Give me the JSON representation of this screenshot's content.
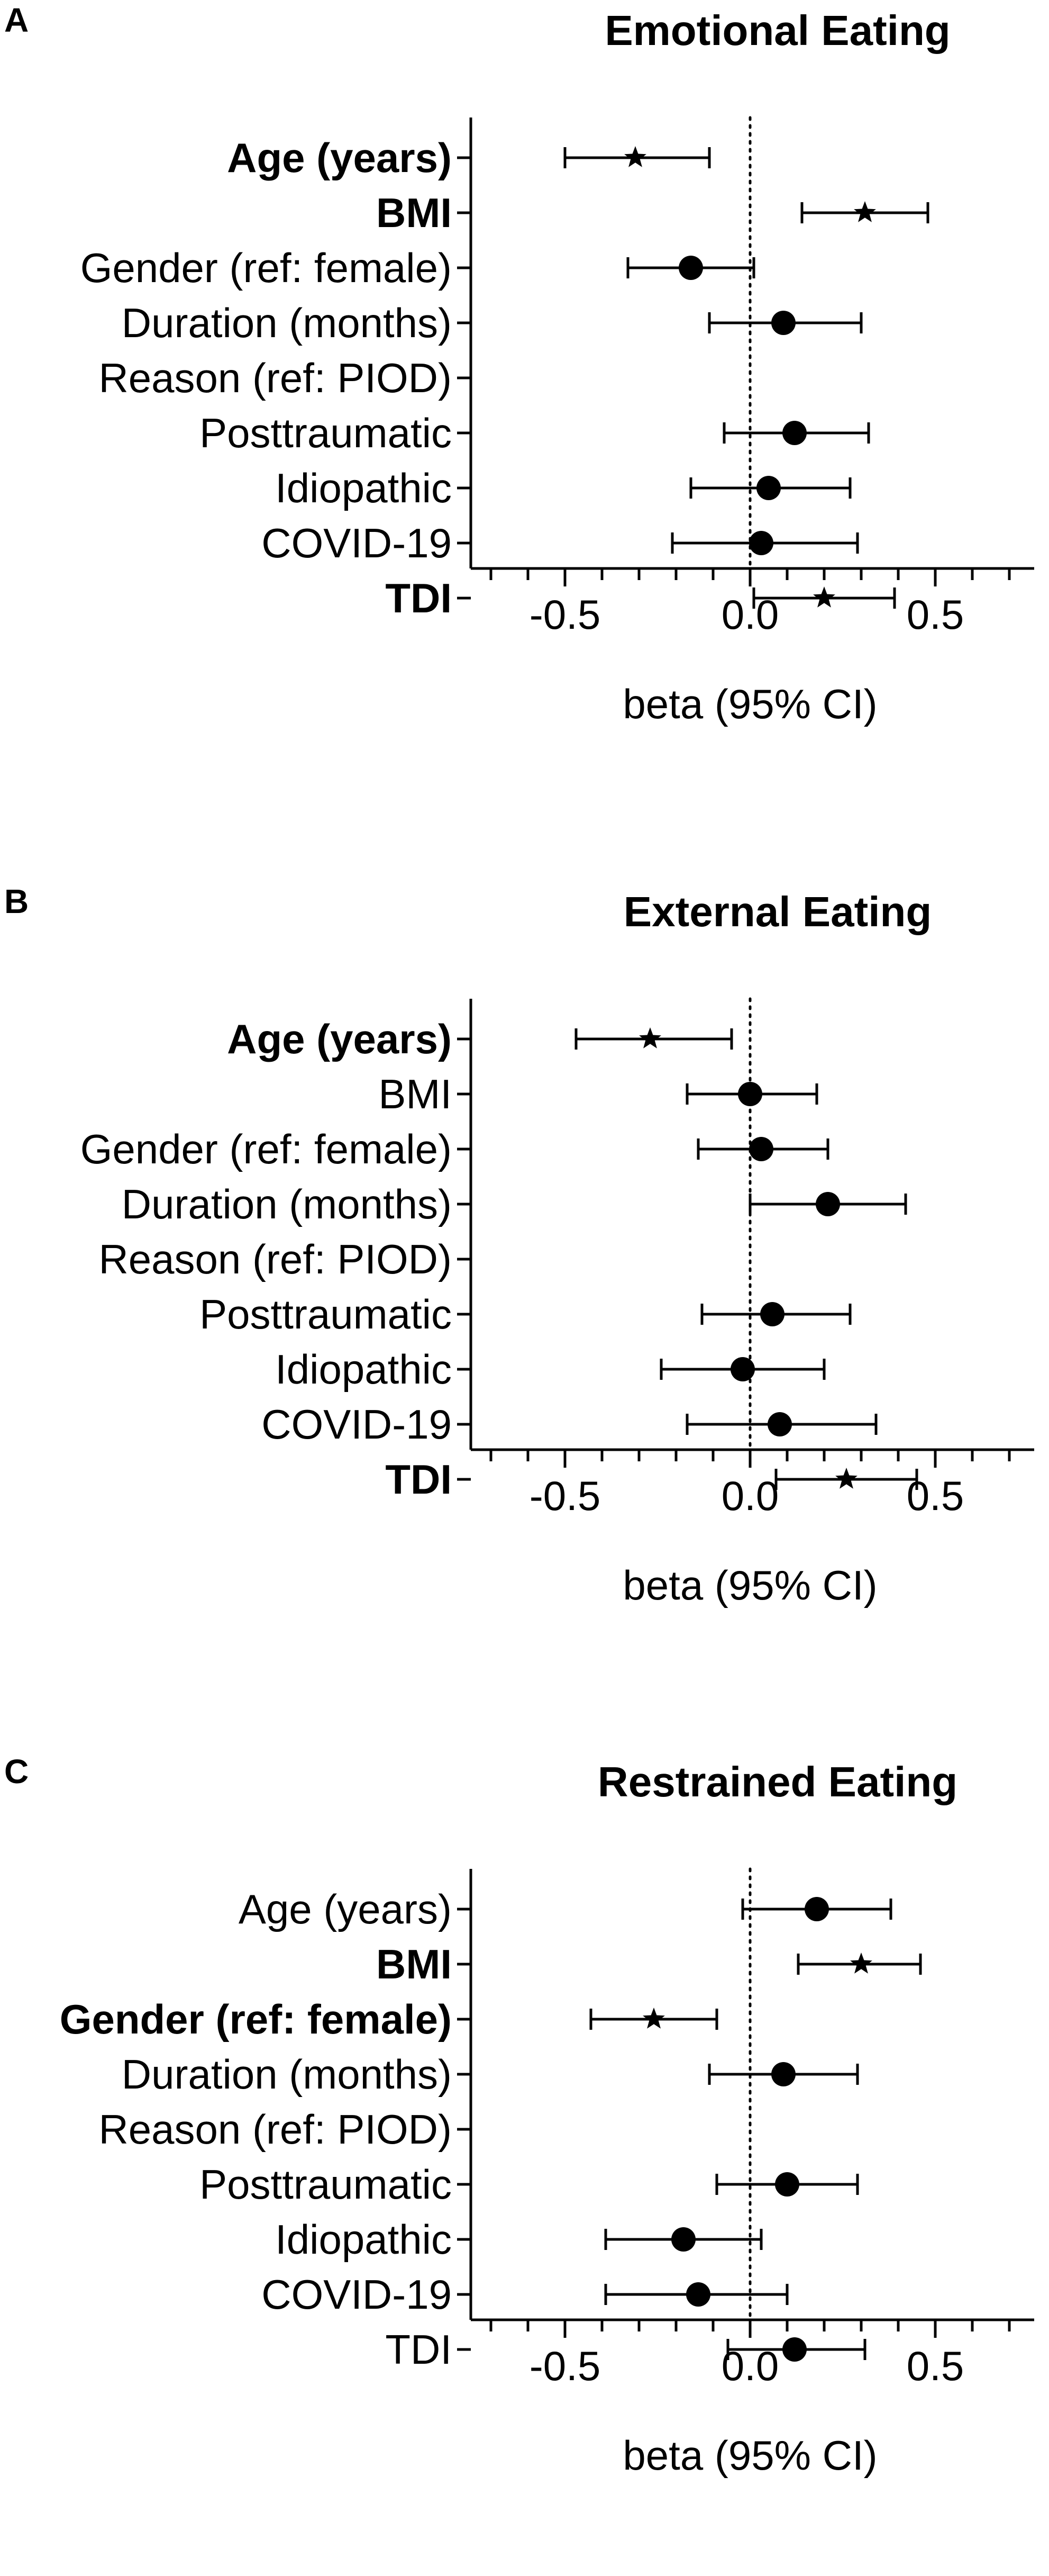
{
  "chart_data": [
    {
      "type": "forest",
      "panel": "A",
      "title": "Emotional Eating",
      "xlabel": "beta (95% CI)",
      "xlim": [
        -0.8,
        0.8
      ],
      "xticks": [
        "-0.5",
        "0.0",
        "0.5"
      ],
      "reference_line": 0,
      "rows": [
        {
          "label": "Age (years)",
          "bold": true,
          "beta": -0.31,
          "lo": -0.5,
          "hi": -0.11,
          "marker": "star"
        },
        {
          "label": "BMI",
          "bold": true,
          "beta": 0.31,
          "lo": 0.14,
          "hi": 0.48,
          "marker": "star"
        },
        {
          "label": "Gender (ref: female)",
          "bold": false,
          "beta": -0.16,
          "lo": -0.33,
          "hi": 0.01,
          "marker": "circle"
        },
        {
          "label": "Duration  (months)",
          "bold": false,
          "beta": 0.09,
          "lo": -0.11,
          "hi": 0.3,
          "marker": "circle"
        },
        {
          "label": "Reason (ref: PIOD)",
          "bold": false,
          "beta": null,
          "lo": null,
          "hi": null,
          "marker": "none"
        },
        {
          "label": "Posttraumatic",
          "bold": false,
          "beta": 0.12,
          "lo": -0.07,
          "hi": 0.32,
          "marker": "circle"
        },
        {
          "label": "Idiopathic",
          "bold": false,
          "beta": 0.05,
          "lo": -0.16,
          "hi": 0.27,
          "marker": "circle"
        },
        {
          "label": "COVID-19",
          "bold": false,
          "beta": 0.03,
          "lo": -0.21,
          "hi": 0.29,
          "marker": "circle"
        },
        {
          "label": "TDI",
          "bold": true,
          "beta": 0.2,
          "lo": 0.01,
          "hi": 0.39,
          "marker": "star"
        }
      ]
    },
    {
      "type": "forest",
      "panel": "B",
      "title": "External Eating",
      "xlabel": "beta (95% CI)",
      "xlim": [
        -0.8,
        0.8
      ],
      "xticks": [
        "-0.5",
        "0.0",
        "0.5"
      ],
      "reference_line": 0,
      "rows": [
        {
          "label": "Age (years)",
          "bold": true,
          "beta": -0.27,
          "lo": -0.47,
          "hi": -0.05,
          "marker": "star"
        },
        {
          "label": "BMI",
          "bold": false,
          "beta": 0.0,
          "lo": -0.17,
          "hi": 0.18,
          "marker": "circle"
        },
        {
          "label": "Gender (ref: female)",
          "bold": false,
          "beta": 0.03,
          "lo": -0.14,
          "hi": 0.21,
          "marker": "circle"
        },
        {
          "label": "Duration (months)",
          "bold": false,
          "beta": 0.21,
          "lo": 0.0,
          "hi": 0.42,
          "marker": "circle"
        },
        {
          "label": "Reason (ref: PIOD)",
          "bold": false,
          "beta": null,
          "lo": null,
          "hi": null,
          "marker": "none"
        },
        {
          "label": "Posttraumatic",
          "bold": false,
          "beta": 0.06,
          "lo": -0.13,
          "hi": 0.27,
          "marker": "circle"
        },
        {
          "label": "Idiopathic",
          "bold": false,
          "beta": -0.02,
          "lo": -0.24,
          "hi": 0.2,
          "marker": "circle"
        },
        {
          "label": "COVID-19",
          "bold": false,
          "beta": 0.08,
          "lo": -0.17,
          "hi": 0.34,
          "marker": "circle"
        },
        {
          "label": "TDI",
          "bold": true,
          "beta": 0.26,
          "lo": 0.07,
          "hi": 0.45,
          "marker": "star"
        }
      ]
    },
    {
      "type": "forest",
      "panel": "C",
      "title": "Restrained Eating",
      "xlabel": "beta (95% CI)",
      "xlim": [
        -0.8,
        0.8
      ],
      "xticks": [
        "-0.5",
        "0.0",
        "0.5"
      ],
      "reference_line": 0,
      "rows": [
        {
          "label": "Age (years)",
          "bold": false,
          "beta": 0.18,
          "lo": -0.02,
          "hi": 0.38,
          "marker": "circle"
        },
        {
          "label": "BMI",
          "bold": true,
          "beta": 0.3,
          "lo": 0.13,
          "hi": 0.46,
          "marker": "star"
        },
        {
          "label": "Gender (ref: female)",
          "bold": true,
          "beta": -0.26,
          "lo": -0.43,
          "hi": -0.09,
          "marker": "star"
        },
        {
          "label": "Duration (months)",
          "bold": false,
          "beta": 0.09,
          "lo": -0.11,
          "hi": 0.29,
          "marker": "circle"
        },
        {
          "label": "Reason (ref: PIOD)",
          "bold": false,
          "beta": null,
          "lo": null,
          "hi": null,
          "marker": "none"
        },
        {
          "label": "Posttraumatic",
          "bold": false,
          "beta": 0.1,
          "lo": -0.09,
          "hi": 0.29,
          "marker": "circle"
        },
        {
          "label": "Idiopathic",
          "bold": false,
          "beta": -0.18,
          "lo": -0.39,
          "hi": 0.03,
          "marker": "circle"
        },
        {
          "label": "COVID-19",
          "bold": false,
          "beta": -0.14,
          "lo": -0.39,
          "hi": 0.1,
          "marker": "circle"
        },
        {
          "label": "TDI",
          "bold": false,
          "beta": 0.12,
          "lo": -0.06,
          "hi": 0.31,
          "marker": "circle"
        }
      ]
    }
  ]
}
